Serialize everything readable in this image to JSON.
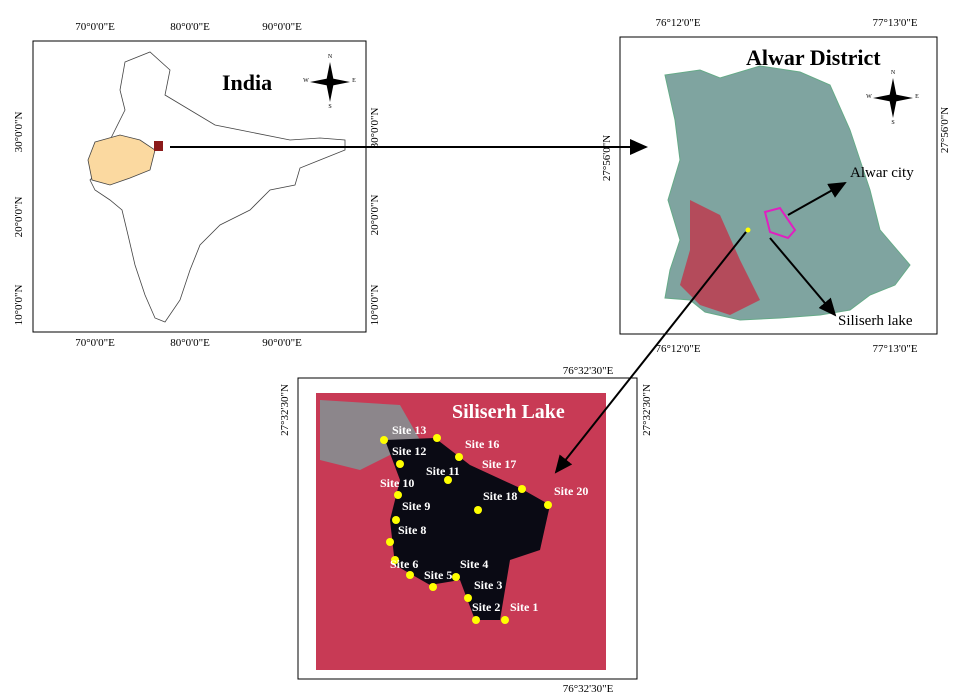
{
  "india": {
    "title": "India",
    "top_ticks": [
      "70°0'0\"E",
      "80°0'0\"E",
      "90°0'0\"E"
    ],
    "bottom_ticks": [
      "70°0'0\"E",
      "80°0'0\"E",
      "90°0'0\"E"
    ],
    "left_ticks": [
      "30°0'0\"N",
      "20°0'0\"N",
      "10°0'0\"N"
    ],
    "right_ticks": [
      "30°0'0\"N",
      "20°0'0\"N",
      "10°0'0\"N"
    ],
    "compass": [
      "N",
      "E",
      "S",
      "W"
    ]
  },
  "alwar": {
    "title": "Alwar District",
    "top_ticks": [
      "76°12'0\"E",
      "77°13'0\"E"
    ],
    "bottom_ticks": [
      "76°12'0\"E",
      "77°13'0\"E"
    ],
    "left_ticks": [
      "27°56'0\"N"
    ],
    "right_ticks": [
      "27°56'0\"N"
    ],
    "labels": [
      "Alwar city",
      "Siliserh lake"
    ],
    "compass": [
      "N",
      "E",
      "S",
      "W"
    ]
  },
  "siliserh": {
    "title": "Siliserh Lake",
    "top_ticks": [
      "76°32'30\"E"
    ],
    "bottom_ticks": [
      "76°32'30\"E"
    ],
    "left_ticks": [
      "27°32'30\"N"
    ],
    "right_ticks": [
      "27°32'30\"N"
    ],
    "sites": [
      "Site 13",
      "Site 12",
      "Site 16",
      "Site 11",
      "Site 17",
      "Site 10",
      "Site 18",
      "Site 9",
      "Site 20",
      "Site 8",
      "Site 6",
      "Site 4",
      "Site 5",
      "Site 3",
      "Site 2",
      "Site 1"
    ]
  }
}
